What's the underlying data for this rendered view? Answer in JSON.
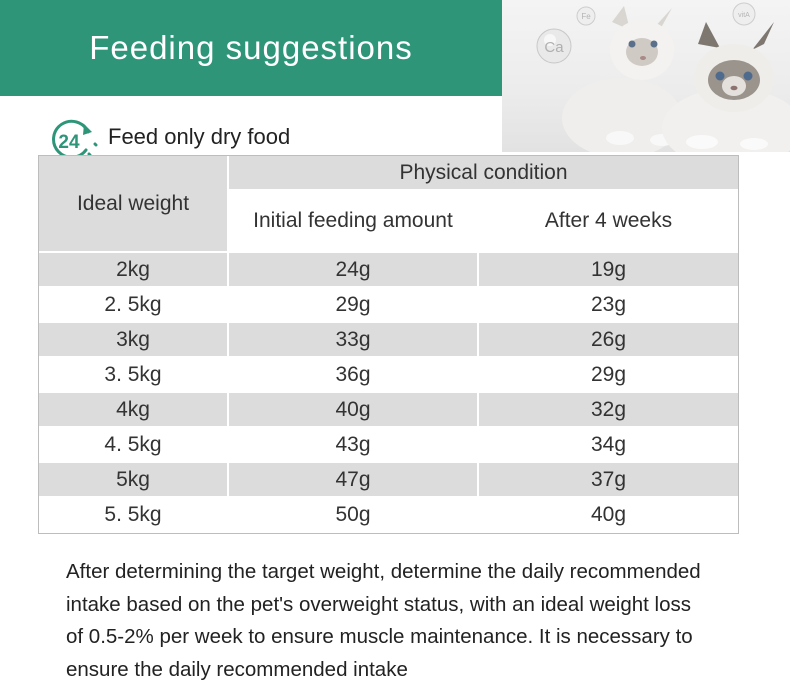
{
  "header": {
    "title": "Feeding suggestions"
  },
  "photo": {
    "badges": [
      "Ca",
      "Fe",
      "vitA"
    ]
  },
  "clock_icon": {
    "number": "24"
  },
  "subtitle": "Feed only dry food",
  "table": {
    "col_weight": "Ideal weight",
    "group_header": "Physical condition",
    "col_initial": "Initial feeding amount",
    "col_after": "After 4 weeks",
    "rows": [
      {
        "weight": "2kg",
        "initial": "24g",
        "after": "19g"
      },
      {
        "weight": "2. 5kg",
        "initial": "29g",
        "after": "23g"
      },
      {
        "weight": "3kg",
        "initial": "33g",
        "after": "26g"
      },
      {
        "weight": "3. 5kg",
        "initial": "36g",
        "after": "29g"
      },
      {
        "weight": "4kg",
        "initial": "40g",
        "after": "32g"
      },
      {
        "weight": "4. 5kg",
        "initial": "43g",
        "after": "34g"
      },
      {
        "weight": "5kg",
        "initial": "47g",
        "after": "37g"
      },
      {
        "weight": "5. 5kg",
        "initial": "50g",
        "after": "40g"
      }
    ]
  },
  "description": {
    "lines": [
      "After determining the target weight, determine the daily recommended",
      "intake based on the pet's overweight status, with an ideal weight loss",
      "of 0.5-2% per week to ensure muscle maintenance. It is necessary to",
      "ensure the daily recommended intake"
    ]
  },
  "colors": {
    "banner": "#2e9579",
    "table_gray": "#dcdcdc"
  }
}
